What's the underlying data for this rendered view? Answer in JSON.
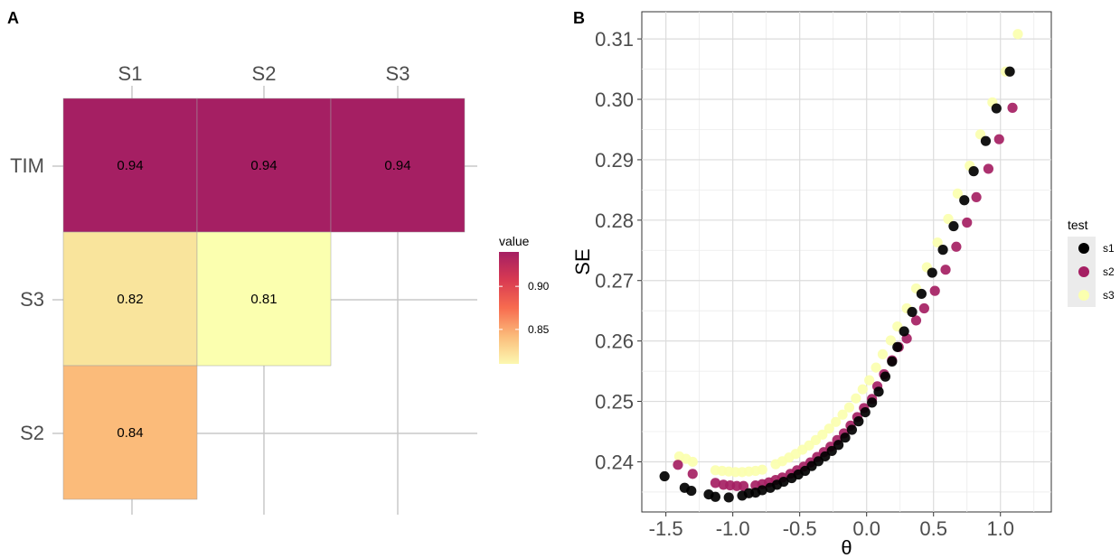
{
  "panel_a": {
    "tag": "A",
    "columns": [
      "S1",
      "S2",
      "S3"
    ],
    "rows": [
      "TIM",
      "S3",
      "S2"
    ],
    "cells": [
      {
        "row": "TIM",
        "col": "S1",
        "value": 0.94,
        "label": "0.94",
        "color": "#a51f63"
      },
      {
        "row": "TIM",
        "col": "S2",
        "value": 0.94,
        "label": "0.94",
        "color": "#a51f63"
      },
      {
        "row": "TIM",
        "col": "S3",
        "value": 0.94,
        "label": "0.94",
        "color": "#a51f63"
      },
      {
        "row": "S3",
        "col": "S1",
        "value": 0.82,
        "label": "0.82",
        "color": "#f9e49c"
      },
      {
        "row": "S3",
        "col": "S2",
        "value": 0.81,
        "label": "0.81",
        "color": "#fbffaf"
      },
      {
        "row": "S2",
        "col": "S1",
        "value": 0.84,
        "label": "0.84",
        "color": "#fbbb7a"
      }
    ],
    "legend": {
      "title": "value",
      "ticks": [
        {
          "value": 0.9,
          "label": "0.90"
        },
        {
          "value": 0.85,
          "label": "0.85"
        }
      ],
      "range": [
        0.81,
        0.94
      ],
      "colors": [
        "#fcf8b0",
        "#fbbb7a",
        "#f76c4f",
        "#d83a52",
        "#a51f63"
      ]
    }
  },
  "panel_b": {
    "tag": "B",
    "xlabel": "θ",
    "ylabel": "SE",
    "legend_title": "test",
    "series_colors": {
      "s1": "#000000",
      "s2": "#a51f63",
      "s3": "#fbffaf"
    }
  },
  "chart_data": {
    "type": "scatter",
    "xlim": [
      -1.68,
      1.38
    ],
    "ylim": [
      0.2317,
      0.3145
    ],
    "x_ticks": [
      -1.5,
      -1.0,
      -0.5,
      0.0,
      0.5,
      1.0
    ],
    "x_tick_labels": [
      "-1.5",
      "-1.0",
      "-0.5",
      "0.0",
      "0.5",
      "1.0"
    ],
    "y_ticks": [
      0.24,
      0.25,
      0.26,
      0.27,
      0.28,
      0.29,
      0.3,
      0.31
    ],
    "y_tick_labels": [
      "0.24",
      "0.25",
      "0.26",
      "0.27",
      "0.28",
      "0.29",
      "0.30",
      "0.31"
    ],
    "grid": true,
    "legend_position": "right",
    "series": [
      {
        "name": "s1",
        "points": [
          [
            -1.51,
            0.2376
          ],
          [
            -1.36,
            0.2357
          ],
          [
            -1.31,
            0.2352
          ],
          [
            -1.18,
            0.2346
          ],
          [
            -1.13,
            0.2342
          ],
          [
            -1.03,
            0.2341
          ],
          [
            -0.93,
            0.2344
          ],
          [
            -0.88,
            0.2348
          ],
          [
            -0.83,
            0.2349
          ],
          [
            -0.78,
            0.2353
          ],
          [
            -0.72,
            0.2357
          ],
          [
            -0.67,
            0.2362
          ],
          [
            -0.62,
            0.2367
          ],
          [
            -0.56,
            0.2373
          ],
          [
            -0.51,
            0.2379
          ],
          [
            -0.46,
            0.2385
          ],
          [
            -0.41,
            0.2393
          ],
          [
            -0.36,
            0.2401
          ],
          [
            -0.31,
            0.2409
          ],
          [
            -0.26,
            0.2418
          ],
          [
            -0.21,
            0.2428
          ],
          [
            -0.16,
            0.244
          ],
          [
            -0.11,
            0.2453
          ],
          [
            -0.06,
            0.2467
          ],
          [
            -0.01,
            0.2482
          ],
          [
            0.04,
            0.2498
          ],
          [
            0.09,
            0.2516
          ],
          [
            0.14,
            0.2541
          ],
          [
            0.19,
            0.2566
          ],
          [
            0.23,
            0.259
          ],
          [
            0.28,
            0.2616
          ],
          [
            0.34,
            0.2648
          ],
          [
            0.41,
            0.2678
          ],
          [
            0.49,
            0.2713
          ],
          [
            0.57,
            0.2751
          ],
          [
            0.65,
            0.279
          ],
          [
            0.73,
            0.2833
          ],
          [
            0.8,
            0.2881
          ],
          [
            0.89,
            0.2931
          ],
          [
            0.97,
            0.2985
          ],
          [
            1.07,
            0.3046
          ]
        ]
      },
      {
        "name": "s2",
        "points": [
          [
            -1.41,
            0.2395
          ],
          [
            -1.3,
            0.238
          ],
          [
            -1.13,
            0.2365
          ],
          [
            -1.07,
            0.2362
          ],
          [
            -1.02,
            0.2361
          ],
          [
            -0.97,
            0.236
          ],
          [
            -0.92,
            0.236
          ],
          [
            -0.83,
            0.2361
          ],
          [
            -0.78,
            0.2363
          ],
          [
            -0.73,
            0.2366
          ],
          [
            -0.68,
            0.237
          ],
          [
            -0.63,
            0.2374
          ],
          [
            -0.57,
            0.238
          ],
          [
            -0.52,
            0.2386
          ],
          [
            -0.47,
            0.2392
          ],
          [
            -0.42,
            0.2399
          ],
          [
            -0.37,
            0.2408
          ],
          [
            -0.32,
            0.2416
          ],
          [
            -0.27,
            0.2425
          ],
          [
            -0.22,
            0.2436
          ],
          [
            -0.17,
            0.2447
          ],
          [
            -0.12,
            0.246
          ],
          [
            -0.07,
            0.2474
          ],
          [
            -0.02,
            0.2489
          ],
          [
            0.04,
            0.2504
          ],
          [
            0.08,
            0.2525
          ],
          [
            0.13,
            0.2545
          ],
          [
            0.19,
            0.2568
          ],
          [
            0.24,
            0.259
          ],
          [
            0.3,
            0.2604
          ],
          [
            0.37,
            0.2634
          ],
          [
            0.43,
            0.2654
          ],
          [
            0.51,
            0.2683
          ],
          [
            0.59,
            0.2718
          ],
          [
            0.67,
            0.2756
          ],
          [
            0.75,
            0.2796
          ],
          [
            0.82,
            0.2838
          ],
          [
            0.91,
            0.2885
          ],
          [
            0.99,
            0.2934
          ],
          [
            1.09,
            0.2986
          ]
        ]
      },
      {
        "name": "s3",
        "points": [
          [
            -1.4,
            0.2409
          ],
          [
            -1.35,
            0.2405
          ],
          [
            -1.3,
            0.24
          ],
          [
            -1.13,
            0.2386
          ],
          [
            -1.08,
            0.2385
          ],
          [
            -1.03,
            0.2384
          ],
          [
            -0.98,
            0.2383
          ],
          [
            -0.93,
            0.2383
          ],
          [
            -0.88,
            0.2384
          ],
          [
            -0.83,
            0.2385
          ],
          [
            -0.78,
            0.2387
          ],
          [
            -0.68,
            0.2396
          ],
          [
            -0.63,
            0.2401
          ],
          [
            -0.58,
            0.2407
          ],
          [
            -0.53,
            0.2413
          ],
          [
            -0.48,
            0.242
          ],
          [
            -0.43,
            0.2427
          ],
          [
            -0.38,
            0.2436
          ],
          [
            -0.33,
            0.2445
          ],
          [
            -0.28,
            0.2455
          ],
          [
            -0.23,
            0.2466
          ],
          [
            -0.18,
            0.2478
          ],
          [
            -0.13,
            0.249
          ],
          [
            -0.08,
            0.2505
          ],
          [
            -0.03,
            0.252
          ],
          [
            0.02,
            0.2535
          ],
          [
            0.07,
            0.2556
          ],
          [
            0.12,
            0.2578
          ],
          [
            0.18,
            0.2601
          ],
          [
            0.23,
            0.2624
          ],
          [
            0.3,
            0.2654
          ],
          [
            0.37,
            0.2687
          ],
          [
            0.45,
            0.2722
          ],
          [
            0.53,
            0.2763
          ],
          [
            0.61,
            0.2802
          ],
          [
            0.68,
            0.2844
          ],
          [
            0.77,
            0.289
          ],
          [
            0.85,
            0.2942
          ],
          [
            0.94,
            0.2995
          ],
          [
            1.04,
            0.3046
          ],
          [
            1.13,
            0.3108
          ]
        ]
      }
    ]
  }
}
